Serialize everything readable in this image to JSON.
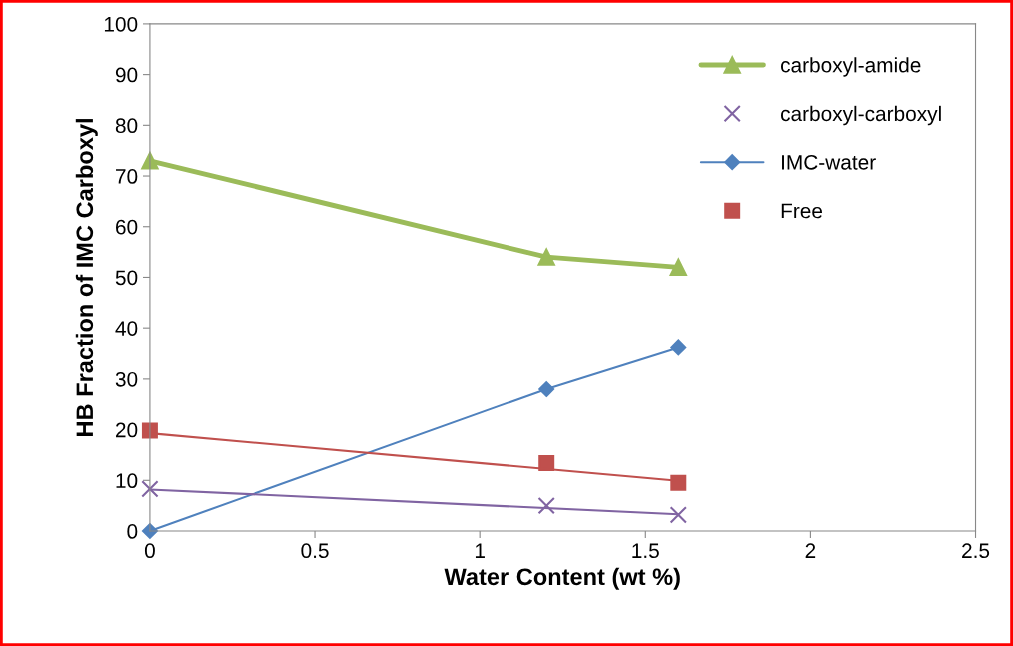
{
  "chart_data": {
    "type": "line",
    "xlabel": "Water Content (wt %)",
    "ylabel": "HB Fraction of IMC Carboxyl",
    "xlim": [
      0,
      2.5
    ],
    "xticks": [
      0,
      0.5,
      1,
      1.5,
      2,
      2.5
    ],
    "ylim": [
      0,
      100
    ],
    "yticks": [
      0,
      10,
      20,
      30,
      40,
      50,
      60,
      70,
      80,
      90,
      100
    ],
    "grid": false,
    "legend": "top right",
    "series": [
      {
        "name": "carboxyl-amide",
        "color": "#9bbb59",
        "marker": "triangle",
        "x": [
          0,
          1.2,
          1.6
        ],
        "values": [
          73,
          54,
          52
        ]
      },
      {
        "name": "carboxyl-carboxyl",
        "type": "scatter",
        "color": "#8064a2",
        "marker": "cross",
        "x": [
          0,
          1.2,
          1.6
        ],
        "values": [
          8.3,
          5,
          3.2
        ]
      },
      {
        "name": "IMC-water",
        "color": "#4f81bd",
        "marker": "diamond",
        "x": [
          0,
          1.2,
          1.6
        ],
        "values": [
          0,
          28,
          36.2
        ]
      },
      {
        "name": "Free",
        "type": "scatter",
        "color": "#c0504d",
        "marker": "square",
        "x": [
          0,
          1.2,
          1.6
        ],
        "values": [
          19.8,
          13.4,
          9.5
        ]
      },
      {
        "color": "#8064a2",
        "marker": "none",
        "x": [
          0,
          1.6
        ],
        "values": [
          8.2,
          3.3
        ]
      },
      {
        "color": "#c0504d",
        "marker": "none",
        "x": [
          0,
          1.6
        ],
        "values": [
          19.3,
          9.9
        ]
      }
    ]
  }
}
